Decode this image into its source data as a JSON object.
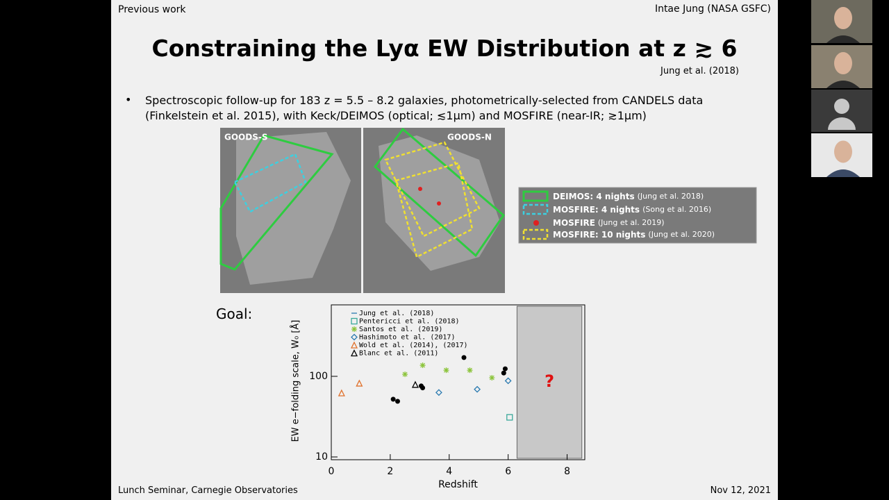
{
  "slide": {
    "section": "Previous work",
    "author": "Intae Jung (NASA GSFC)",
    "title": "Constraining the Lyα EW Distribution at z ≳ 6",
    "citation": "Jung et al. (2018)",
    "bullet": "Spectroscopic follow-up for 183 z = 5.5 – 8.2 galaxies, photometrically-selected from CANDELS data (Finkelstein et al. 2015), with Keck/DEIMOS (optical; ≲1μm) and MOSFIRE (near-IR; ≳1μm)",
    "field_labels": [
      "GOODS-S",
      "GOODS-N"
    ],
    "map_legend": [
      {
        "label": "DEIMOS: 4 nights",
        "ref": "(Jung et al. 2018)"
      },
      {
        "label": "MOSFIRE: 4 nights",
        "ref": "(Song et al. 2016)"
      },
      {
        "label": "MOSFIRE",
        "ref": "(Jung et al. 2019)"
      },
      {
        "label": "MOSFIRE: 10 nights",
        "ref": "(Jung et al. 2020)"
      }
    ],
    "goal": "Goal:",
    "footer_left": "Lunch Seminar, Carnegie Observatories",
    "footer_right": "Nov 12, 2021"
  },
  "chart_data": {
    "type": "scatter",
    "x_label": "Redshift",
    "y_label": "EW e−folding scale, W₀ [Å]",
    "xlim": [
      0,
      8.6
    ],
    "xticks": [
      0,
      2,
      4,
      6,
      8
    ],
    "ylim": [
      10,
      770
    ],
    "yticks": [
      10,
      100
    ],
    "log_y": true,
    "highlight_xrange": [
      6.3,
      8.5
    ],
    "annotation": "?",
    "series": [
      {
        "name": "Jung et al. (2018)",
        "marker": "dash",
        "color": "#2a7ab0",
        "x": [],
        "values": []
      },
      {
        "name": "Pentericci et al. (2018)",
        "marker": "square",
        "color": "#3aa89a",
        "x": [
          6.05
        ],
        "values": [
          31
        ]
      },
      {
        "name": "Santos et al. (2019)",
        "marker": "asterisk",
        "color": "#8cc43c",
        "x": [
          2.5,
          3.1,
          3.9,
          4.7,
          5.45
        ],
        "values": [
          106,
          137,
          119,
          119,
          96
        ]
      },
      {
        "name": "Hashimoto et al. (2017)",
        "marker": "diamond",
        "color": "#2a7ab0",
        "x": [
          3.65,
          4.95,
          6.0
        ],
        "values": [
          63,
          69,
          88
        ]
      },
      {
        "name": "Wold et al. (2014), (2017)",
        "marker": "triangle",
        "color": "#e0702a",
        "x": [
          0.35,
          0.95
        ],
        "values": [
          62,
          82
        ]
      },
      {
        "name": "Blanc et al. (2011)",
        "marker": "triangle",
        "color": "#000000",
        "x": [
          2.85
        ],
        "values": [
          79
        ]
      },
      {
        "marker": "circle",
        "color": "#000000",
        "x": [
          2.1,
          2.25,
          3.05,
          3.1,
          4.5,
          5.85,
          5.9
        ],
        "values": [
          52,
          49,
          76,
          72,
          171,
          110,
          124
        ]
      }
    ]
  }
}
